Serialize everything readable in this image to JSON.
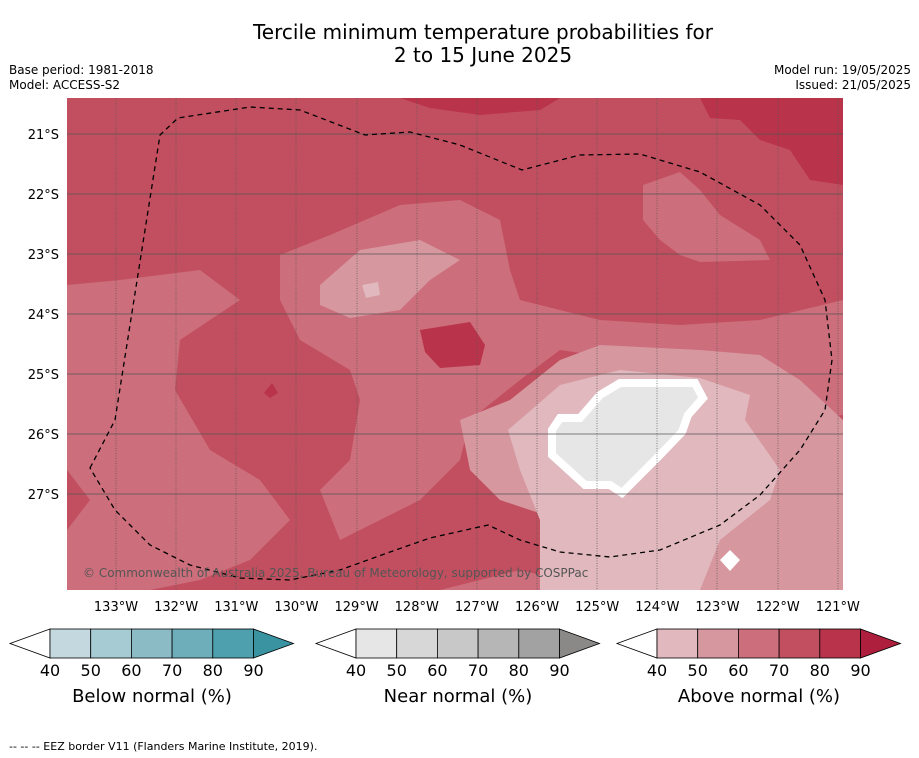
{
  "header": {
    "title_line1": "Tercile minimum temperature probabilities for",
    "title_line2": "2 to 15 June 2025",
    "base_period": "Base period: 1981-2018",
    "model": "Model: ACCESS-S2",
    "model_run": "Model run: 19/05/2025",
    "issued": "Issued: 21/05/2025"
  },
  "map": {
    "lat_labels": [
      "21°S",
      "22°S",
      "23°S",
      "24°S",
      "25°S",
      "26°S",
      "27°S"
    ],
    "lon_labels": [
      "133°W",
      "132°W",
      "131°W",
      "130°W",
      "129°W",
      "128°W",
      "127°W",
      "126°W",
      "125°W",
      "124°W",
      "123°W",
      "122°W",
      "121°W"
    ],
    "copyright": "© Commonwealth of Australia 2025, Bureau of Meteorology, supported by COSPPac"
  },
  "colorbars": [
    {
      "label": "Below normal (%)",
      "ticks": [
        "40",
        "50",
        "60",
        "70",
        "80",
        "90"
      ],
      "colors": [
        "#c3d9df",
        "#a7cbd3",
        "#8bbcc6",
        "#6daeba",
        "#4ea0ae",
        "#3a93a1"
      ]
    },
    {
      "label": "Near normal (%)",
      "ticks": [
        "40",
        "50",
        "60",
        "70",
        "80",
        "90"
      ],
      "colors": [
        "#e6e6e6",
        "#d7d7d7",
        "#c8c8c8",
        "#b6b6b6",
        "#a2a2a2",
        "#8b8888"
      ]
    },
    {
      "label": "Above normal (%)",
      "ticks": [
        "40",
        "50",
        "60",
        "70",
        "80",
        "90"
      ],
      "colors": [
        "#e0b8be",
        "#d6979f",
        "#cc6e7b",
        "#c24f5f",
        "#b9334a",
        "#ad1f3d"
      ]
    }
  ],
  "footer": "--  --  -- EEZ border V11 (Flanders Marine Institute, 2019)."
}
